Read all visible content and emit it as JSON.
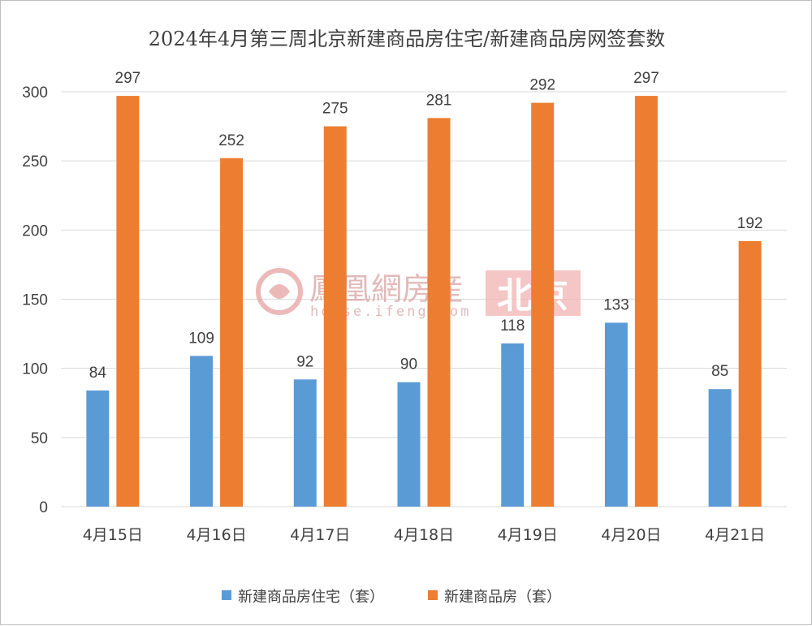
{
  "chart_data": {
    "type": "bar",
    "title": "2024年4月第三周北京新建商品房住宅/新建商品房网签套数",
    "categories": [
      "4月15日",
      "4月16日",
      "4月17日",
      "4月18日",
      "4月19日",
      "4月20日",
      "4月21日"
    ],
    "series": [
      {
        "name": "新建商品房住宅（套）",
        "values": [
          84,
          109,
          92,
          90,
          118,
          133,
          85
        ],
        "color": "#5b9bd5"
      },
      {
        "name": "新建商品房（套）",
        "values": [
          297,
          252,
          275,
          281,
          292,
          297,
          192
        ],
        "color": "#ed7d31"
      }
    ],
    "ylim": [
      0,
      300
    ],
    "yticks": [
      0,
      50,
      100,
      150,
      200,
      250,
      300
    ],
    "grid": true,
    "legend": "bottom"
  },
  "watermark": {
    "brand": "鳳凰網房産",
    "url": "house.ifeng.com",
    "city": "北京",
    "color": "#e8a0a0"
  }
}
